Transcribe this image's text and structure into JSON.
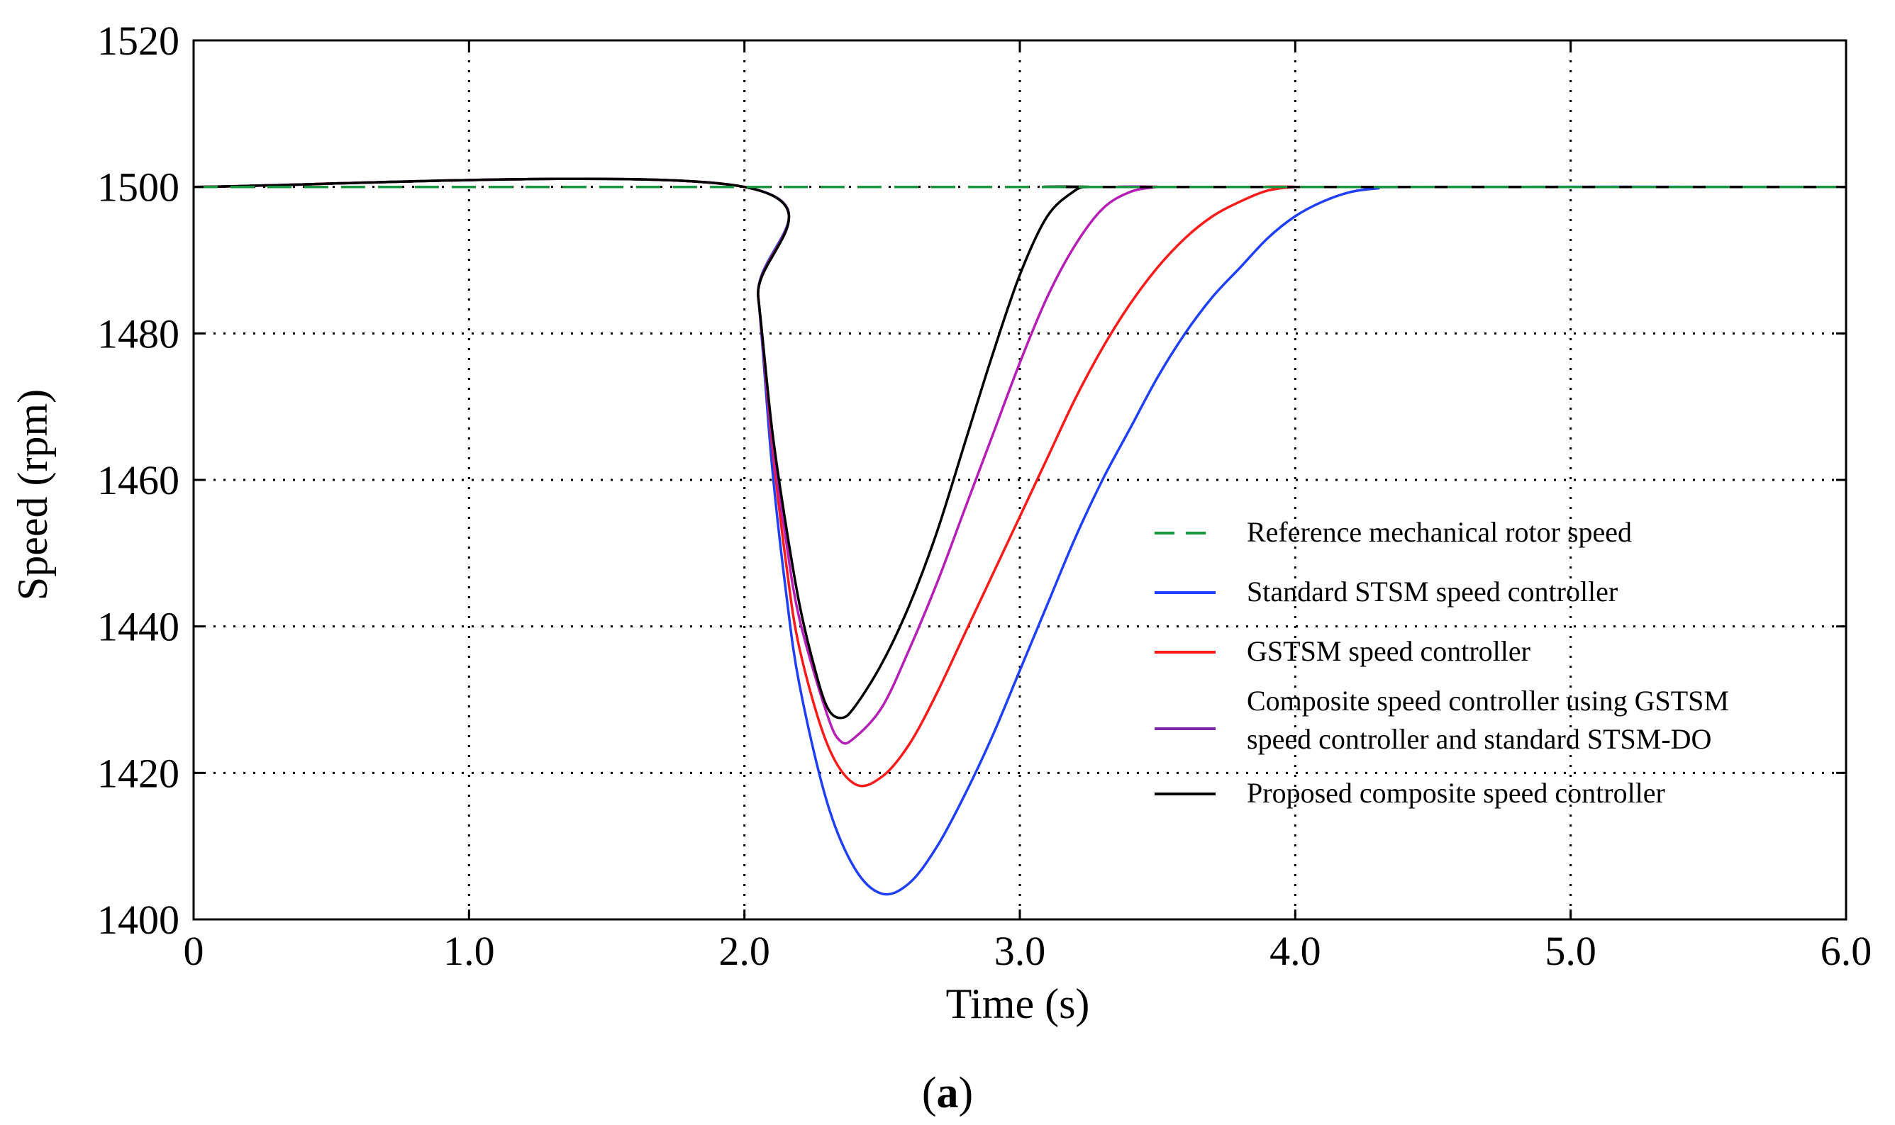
{
  "chart_data": {
    "type": "line",
    "title": "",
    "xlabel": "Time (s)",
    "ylabel": "Speed (rpm)",
    "xlim": [
      0,
      6
    ],
    "ylim": [
      1400,
      1520
    ],
    "xticks": [
      0,
      1,
      2,
      3,
      4,
      5,
      6
    ],
    "xtick_labels": [
      "0",
      "1.0",
      "2.0",
      "3.0",
      "4.0",
      "5.0",
      "6.0"
    ],
    "yticks": [
      1400,
      1420,
      1440,
      1460,
      1480,
      1500,
      1520
    ],
    "ytick_labels": [
      "1400",
      "1420",
      "1440",
      "1460",
      "1480",
      "1500",
      "1520"
    ],
    "grid": true,
    "legend_position": "center-right",
    "series": [
      {
        "name": "Reference mechanical rotor speed",
        "legend_lines": [
          "Reference mechanical rotor speed"
        ],
        "color": "#1a9641",
        "style": "dashed",
        "x": [
          0,
          6
        ],
        "y": [
          1500,
          1500
        ]
      },
      {
        "name": "Standard STSM speed controller",
        "legend_lines": [
          "Standard STSM speed controller"
        ],
        "color": "#1f3fff",
        "style": "solid",
        "x": [
          0,
          2.0,
          2.05,
          2.1,
          2.15,
          2.2,
          2.3,
          2.4,
          2.5,
          2.6,
          2.7,
          2.8,
          2.9,
          3.0,
          3.1,
          3.2,
          3.3,
          3.4,
          3.5,
          3.6,
          3.7,
          3.8,
          3.9,
          4.0,
          4.1,
          4.2,
          4.3,
          4.4,
          6.0
        ],
        "y": [
          1500,
          1500,
          1485,
          1462,
          1445,
          1432,
          1416,
          1407,
          1403.5,
          1405,
          1410,
          1417,
          1425,
          1434,
          1443,
          1452,
          1460,
          1467,
          1474,
          1480,
          1485,
          1489,
          1493,
          1496,
          1498,
          1499.3,
          1499.8,
          1500,
          1500
        ]
      },
      {
        "name": "GSTSM speed controller",
        "legend_lines": [
          "GSTSM speed controller"
        ],
        "color": "#ff1a1a",
        "style": "solid",
        "x": [
          0,
          2.0,
          2.05,
          2.1,
          2.15,
          2.2,
          2.3,
          2.4,
          2.5,
          2.6,
          2.7,
          2.8,
          2.9,
          3.0,
          3.1,
          3.2,
          3.3,
          3.4,
          3.5,
          3.6,
          3.7,
          3.8,
          3.9,
          4.0,
          4.05,
          6.0
        ],
        "y": [
          1500,
          1500,
          1485,
          1465,
          1449,
          1437,
          1424,
          1418.5,
          1419.5,
          1424,
          1431,
          1439,
          1447,
          1455,
          1463,
          1471,
          1478,
          1484,
          1489,
          1493,
          1496,
          1498,
          1499.5,
          1500,
          1500,
          1500
        ]
      },
      {
        "name": "Composite speed controller using GSTSM speed controller and standard STSM-DO",
        "legend_lines": [
          "Composite speed controller using GSTSM",
          "speed controller and standard STSM-DO"
        ],
        "color": "#b51fb5",
        "legend_color": "#7a2aa8",
        "style": "solid",
        "x": [
          0,
          2.0,
          2.05,
          2.1,
          2.15,
          2.2,
          2.3,
          2.35,
          2.4,
          2.5,
          2.6,
          2.7,
          2.8,
          2.9,
          3.0,
          3.1,
          3.2,
          3.3,
          3.4,
          3.5,
          3.55,
          6.0
        ],
        "y": [
          1500,
          1500,
          1485,
          1466,
          1452,
          1441,
          1428,
          1424.3,
          1424.8,
          1429,
          1437,
          1446,
          1456,
          1466,
          1476,
          1485,
          1492,
          1497,
          1499.3,
          1500,
          1500,
          1500
        ]
      },
      {
        "name": "Proposed composite speed controller",
        "legend_lines": [
          "Proposed composite speed controller"
        ],
        "color": "#000000",
        "style": "solid",
        "x": [
          0,
          2.0,
          2.05,
          2.1,
          2.15,
          2.2,
          2.25,
          2.3,
          2.35,
          2.4,
          2.5,
          2.6,
          2.7,
          2.8,
          2.9,
          3.0,
          3.1,
          3.2,
          3.25,
          3.3,
          6.0
        ],
        "y": [
          1500,
          1500,
          1485,
          1467,
          1454,
          1443,
          1435,
          1429,
          1427.5,
          1429,
          1435,
          1443,
          1453,
          1465,
          1477,
          1488,
          1496,
          1499.5,
          1500,
          1500,
          1500
        ]
      }
    ]
  },
  "caption": {
    "open": "(",
    "letter": "a",
    "close": ")"
  }
}
